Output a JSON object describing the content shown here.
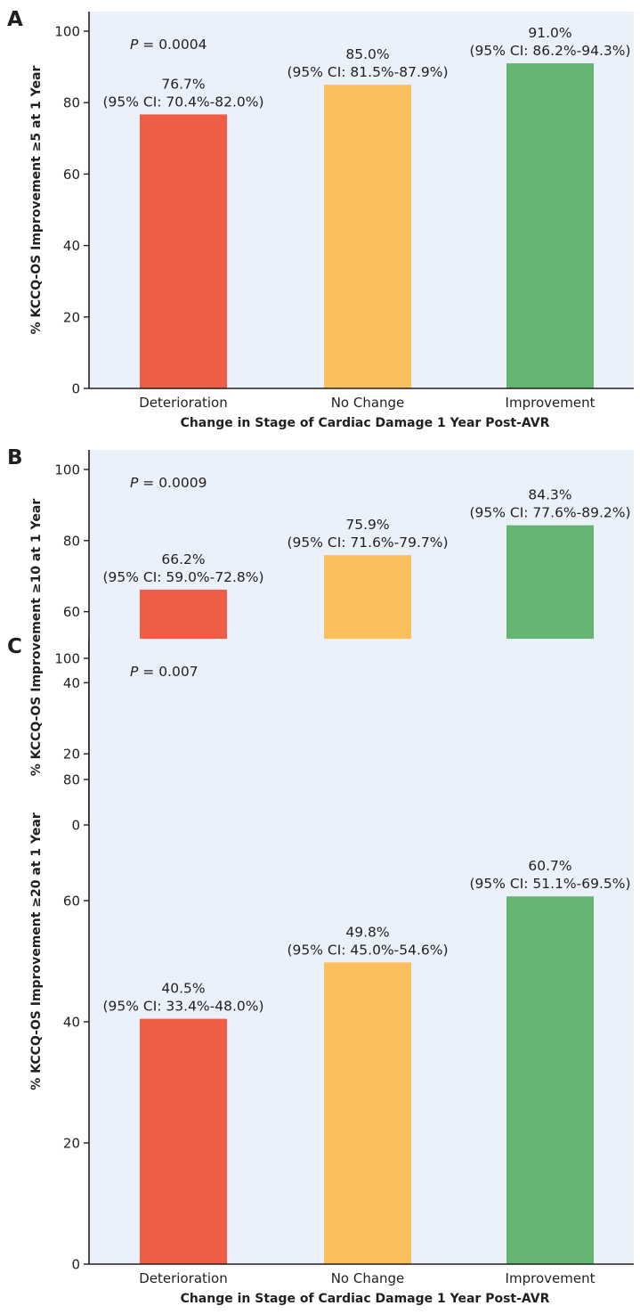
{
  "colors": {
    "panel_background": "#eaf1fa",
    "axis": "#231f20",
    "Deterioration": "#ee5e47",
    "No Change": "#fbbf5b",
    "Improvement": "#63b571"
  },
  "chart_data": [
    {
      "panel": "A",
      "type": "bar",
      "p_prefix": "P",
      "p_value": "= 0.0004",
      "ylabel": "% KCCQ-OS Improvement ≥5 at 1 Year",
      "xlabel": "Change in Stage of Cardiac Damage 1 Year Post-AVR",
      "ylim": [
        0,
        100
      ],
      "yticks": [
        "0",
        "20",
        "40",
        "60",
        "80",
        "100"
      ],
      "categories": [
        "Deterioration",
        "No Change",
        "Improvement"
      ],
      "values": [
        76.7,
        85.0,
        91.0
      ],
      "value_labels": [
        "76.7%",
        "85.0%",
        "91.0%"
      ],
      "ci_labels": [
        "(95% CI: 70.4%-82.0%)",
        "(95% CI: 81.5%-87.9%)",
        "(95% CI: 86.2%-94.3%)"
      ],
      "grid": false
    },
    {
      "panel": "B",
      "type": "bar",
      "p_prefix": "P",
      "p_value": "= 0.0009",
      "ylabel": "% KCCQ-OS Improvement ≥10 at 1 Year",
      "xlabel": "Change in Stage of Cardiac Damage 1 Year Post-AVR",
      "ylim": [
        0,
        100
      ],
      "yticks": [
        "0",
        "20",
        "40",
        "60",
        "80",
        "100"
      ],
      "categories": [
        "Deterioration",
        "No Change",
        "Improvement"
      ],
      "values": [
        66.2,
        75.9,
        84.3
      ],
      "value_labels": [
        "66.2%",
        "75.9%",
        "84.3%"
      ],
      "ci_labels": [
        "(95% CI: 59.0%-72.8%)",
        "(95% CI: 71.6%-79.7%)",
        "(95% CI: 77.6%-89.2%)"
      ],
      "grid": false
    },
    {
      "panel": "C",
      "type": "bar",
      "p_prefix": "P",
      "p_value": "= 0.007",
      "ylabel": "% KCCQ-OS Improvement ≥20 at 1 Year",
      "xlabel": "Change in Stage of Cardiac Damage 1 Year Post-AVR",
      "ylim": [
        0,
        100
      ],
      "yticks": [
        "0",
        "20",
        "40",
        "60",
        "80",
        "100"
      ],
      "categories": [
        "Deterioration",
        "No Change",
        "Improvement"
      ],
      "values": [
        40.5,
        49.8,
        60.7
      ],
      "value_labels": [
        "40.5%",
        "49.8%",
        "60.7%"
      ],
      "ci_labels": [
        "(95% CI: 33.4%-48.0%)",
        "(95% CI: 45.0%-54.6%)",
        "(95% CI: 51.1%-69.5%)"
      ],
      "grid": false
    }
  ]
}
